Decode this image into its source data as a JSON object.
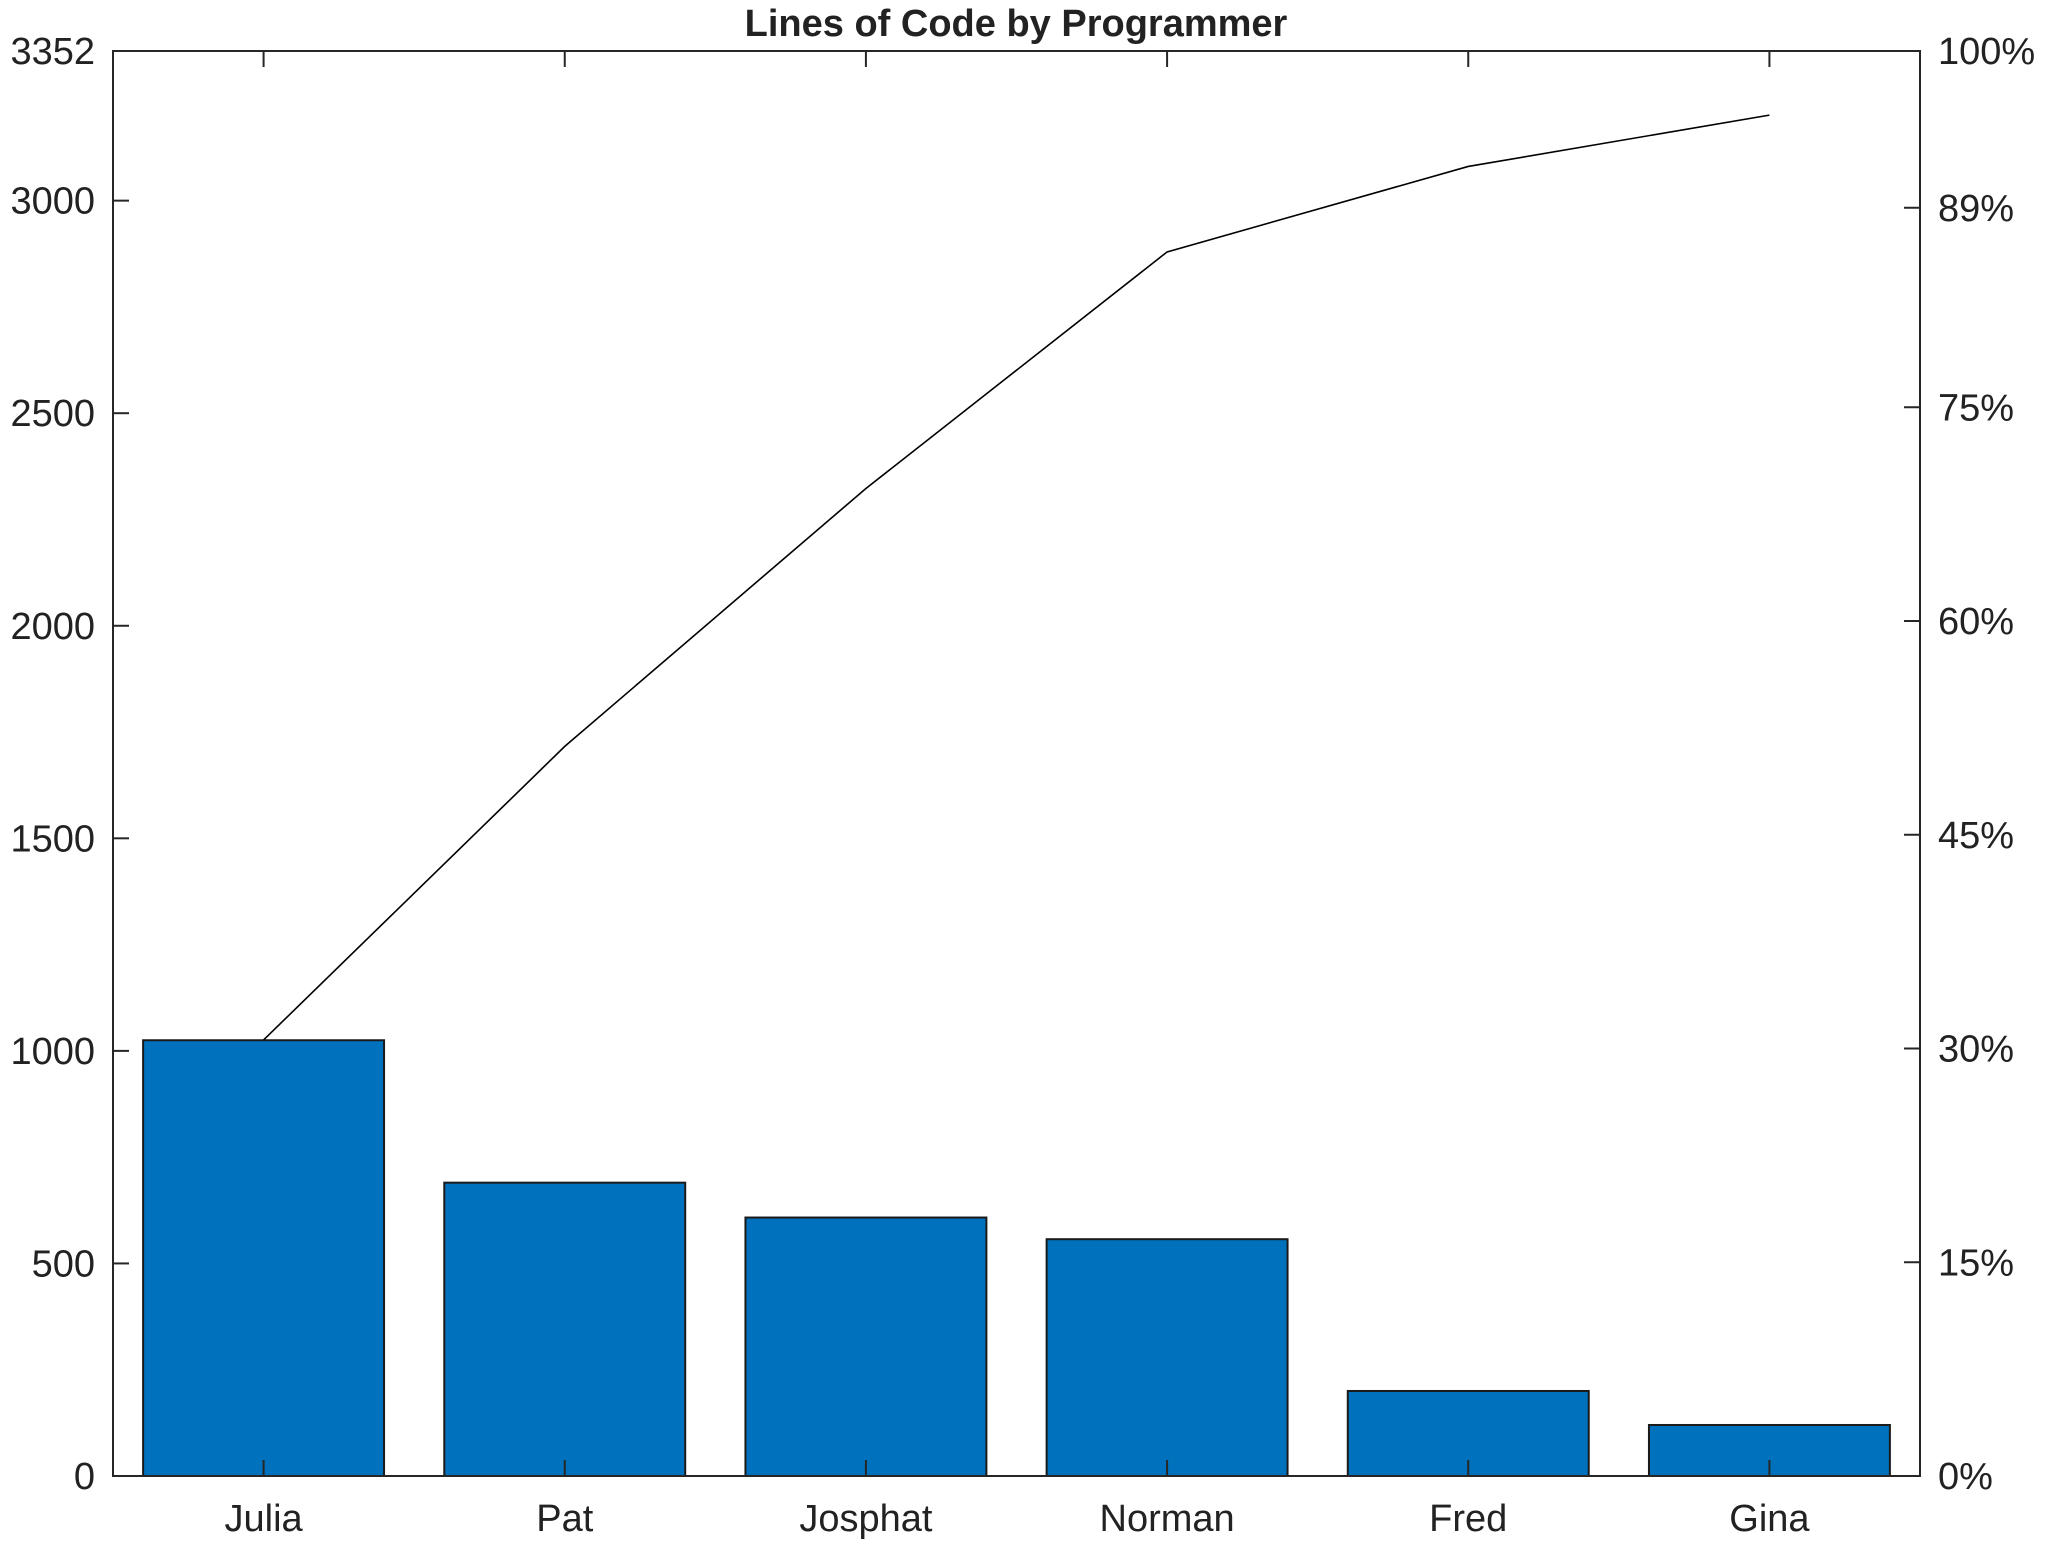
{
  "chart_data": {
    "type": "bar",
    "title": "Lines of Code by Programmer",
    "xlabel": "",
    "ylabel": "",
    "categories": [
      "Julia",
      "Pat",
      "Josphat",
      "Norman",
      "Fred",
      "Gina"
    ],
    "values": [
      1025,
      690,
      608,
      557,
      200,
      120
    ],
    "cumulative_percent": [
      30.6,
      51.2,
      69.3,
      85.9,
      91.9,
      95.5
    ],
    "ylim": [
      0,
      3352
    ],
    "y_ticks": [
      0,
      500,
      1000,
      1500,
      2000,
      2500,
      3000,
      3352
    ],
    "y_tick_labels": [
      "0",
      "500",
      "1000",
      "1500",
      "2000",
      "2500",
      "3000",
      "3352"
    ],
    "y2lim": [
      0,
      100
    ],
    "y2_ticks": [
      0,
      15,
      30,
      45,
      60,
      75,
      89,
      100
    ],
    "y2_tick_labels": [
      "0%",
      "15%",
      "30%",
      "45%",
      "60%",
      "75%",
      "89%",
      "100%"
    ],
    "grid": false,
    "legend": "none"
  },
  "colors": {
    "bar_fill": "#0072bd",
    "bar_edge": "#1a1a1a",
    "line": "#000000",
    "axis": "#262626"
  }
}
